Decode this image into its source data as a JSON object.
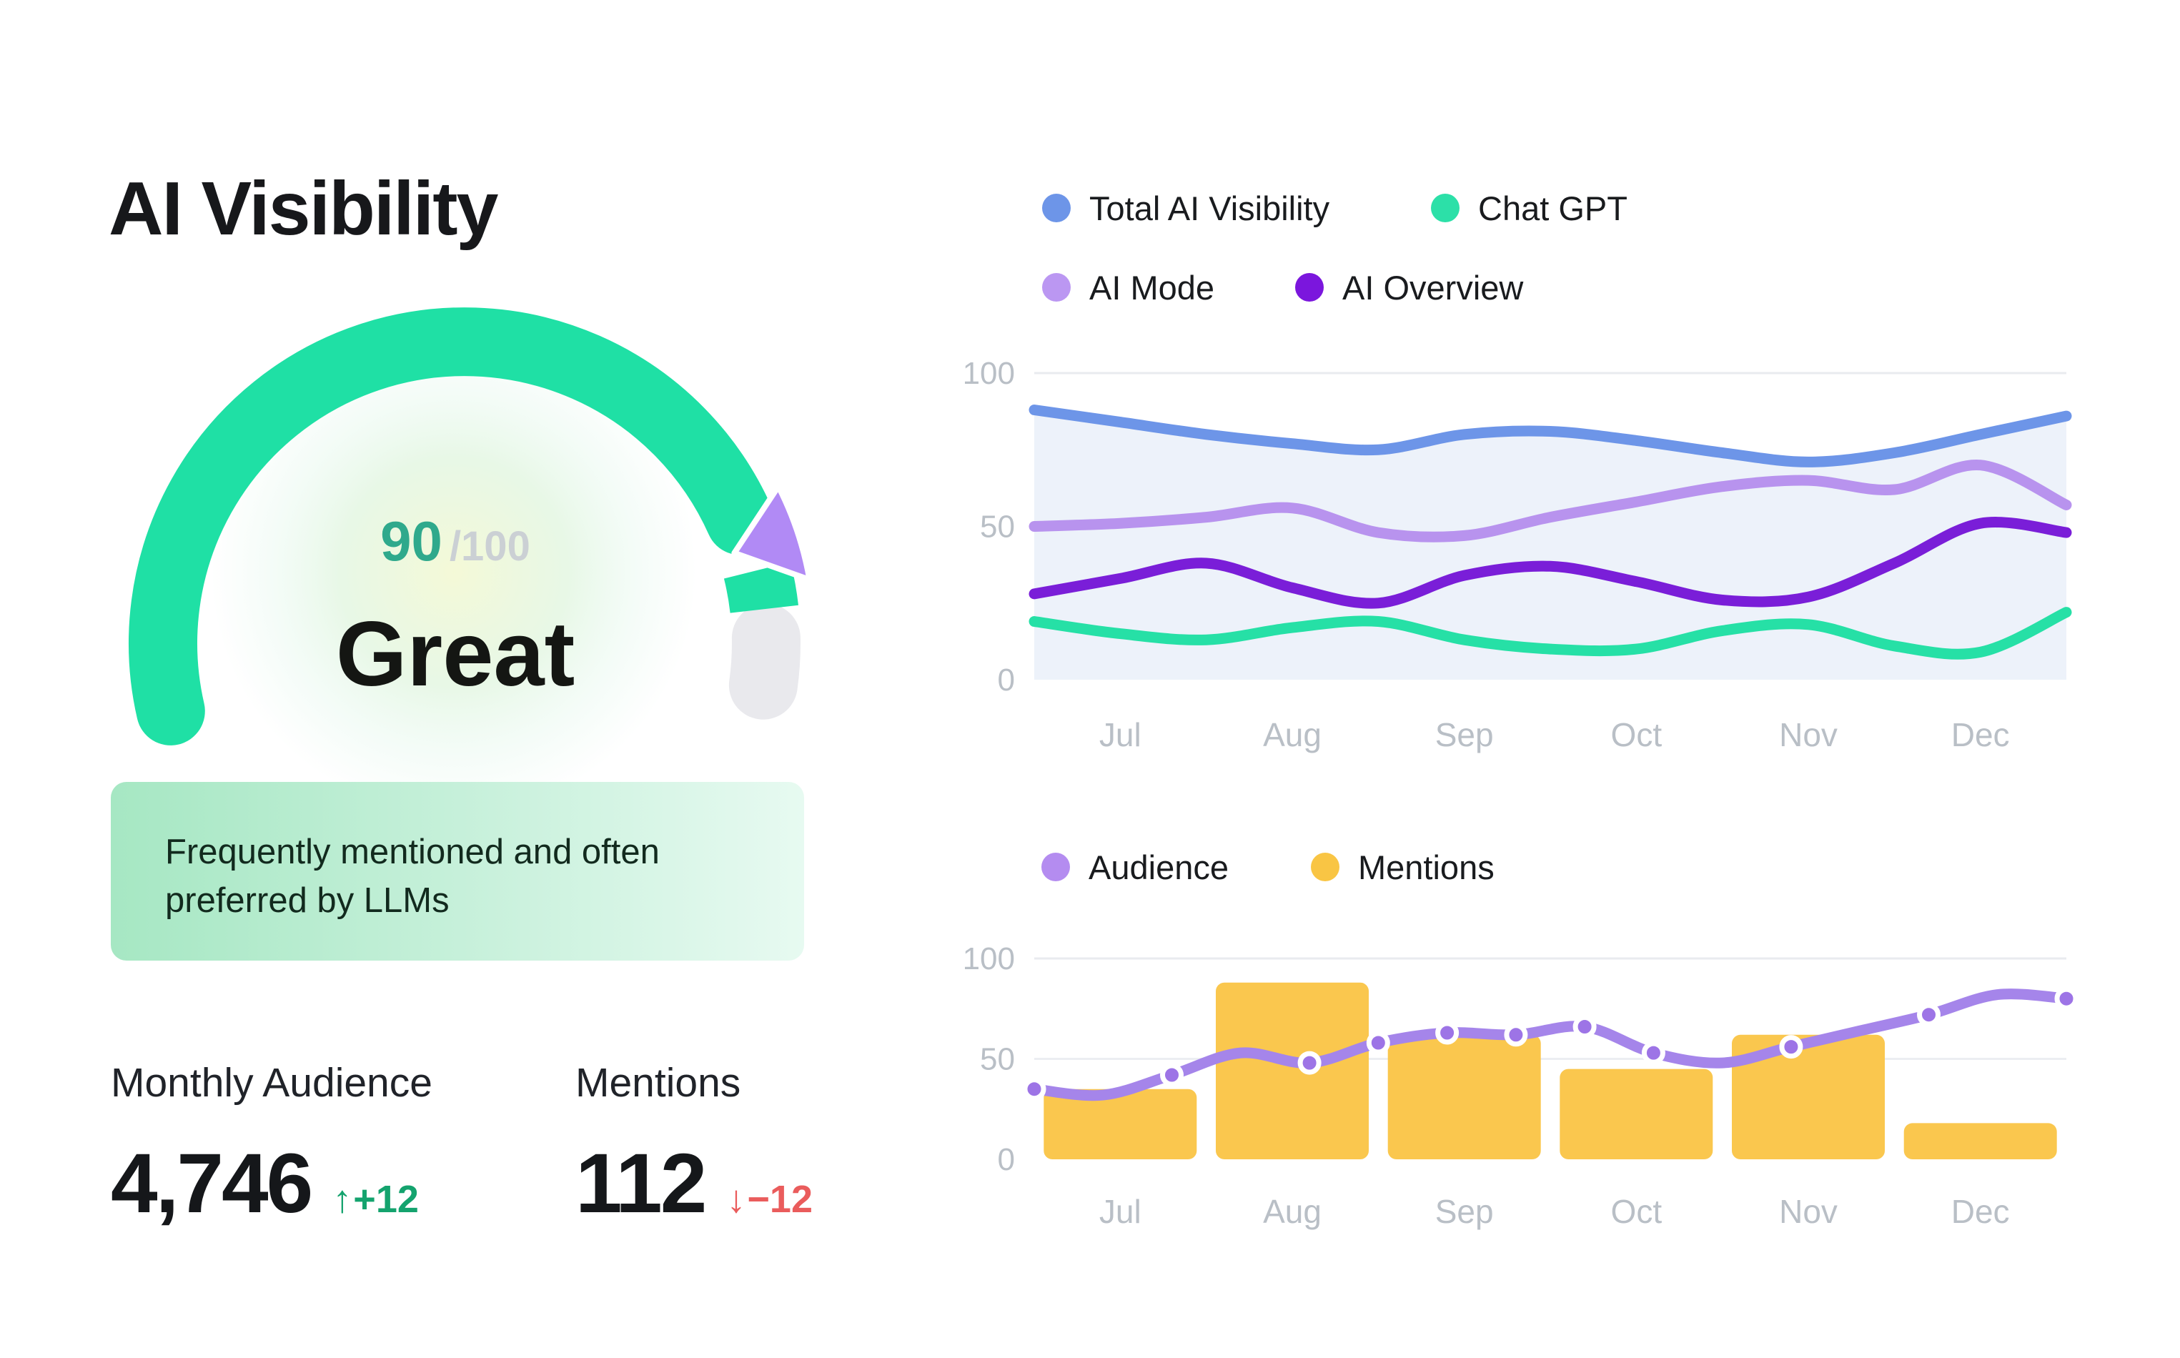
{
  "header": {
    "title": "AI Visibility"
  },
  "gauge": {
    "score": "90",
    "max": "/100",
    "rating": "Great",
    "colors": {
      "arc": "#1fe0a5",
      "wedge": "#b18af5",
      "remainder": "#e9e9ed",
      "score": "#2fa98c",
      "max_text": "#cbd0d4",
      "rating_text": "#141613"
    }
  },
  "note": {
    "line1": "Frequently mentioned and often",
    "line2": "preferred by LLMs"
  },
  "stats": [
    {
      "label": "Monthly Audience",
      "value": "4,746",
      "delta_arrow": "↑",
      "delta_text": "+12",
      "delta_color": "#14a36e"
    },
    {
      "label": "Mentions",
      "value": "112",
      "delta_arrow": "↓",
      "delta_text": "−12",
      "delta_color": "#ea5c5c"
    }
  ],
  "chart_data": [
    {
      "type": "line",
      "x_labels": [
        "Jul",
        "Aug",
        "Sep",
        "Oct",
        "Nov",
        "Dec"
      ],
      "ylim": [
        0,
        100
      ],
      "yticks": [
        0,
        50,
        100
      ],
      "grid": true,
      "legend_position": "top",
      "area_under_first_series": true,
      "area_color": "#edf2fa",
      "tick_color": "#b9bfc6",
      "series": [
        {
          "name": "Total AI Visibility",
          "color": "#6d95e8",
          "values": [
            88,
            84,
            80,
            77,
            75,
            80,
            81,
            78,
            74,
            71,
            74,
            80,
            86
          ]
        },
        {
          "name": "AI Mode",
          "color": "#b893ee",
          "values": [
            50,
            51,
            53,
            56,
            48,
            47,
            53,
            58,
            63,
            65,
            62,
            70,
            57
          ]
        },
        {
          "name": "AI Overview",
          "color": "#7a1ed8",
          "values": [
            28,
            33,
            38,
            30,
            25,
            34,
            37,
            32,
            26,
            27,
            38,
            51,
            48
          ]
        },
        {
          "name": "Chat GPT",
          "color": "#26e0a6",
          "values": [
            19,
            15,
            13,
            17,
            19,
            13,
            10,
            10,
            16,
            18,
            11,
            9,
            22
          ]
        }
      ],
      "legend": [
        {
          "label": "Total AI Visibility",
          "color": "#6d95e8"
        },
        {
          "label": "Chat GPT",
          "color": "#2ce0a8"
        },
        {
          "label": "AI Mode",
          "color": "#bb97f2"
        },
        {
          "label": "AI Overview",
          "color": "#7b16dd"
        }
      ]
    },
    {
      "type": "bar+line",
      "x_labels": [
        "Jul",
        "Aug",
        "Sep",
        "Oct",
        "Nov",
        "Dec"
      ],
      "ylim": [
        0,
        100
      ],
      "yticks": [
        0,
        50,
        100
      ],
      "grid": true,
      "legend_position": "top",
      "tick_color": "#b9bfc6",
      "bars": {
        "name": "Mentions",
        "color": "#fac74e",
        "values": [
          35,
          88,
          62,
          45,
          62,
          18
        ]
      },
      "line": {
        "name": "Audience",
        "color": "#a585ea",
        "marker_fill": "#9d74e6",
        "values": [
          35,
          32,
          42,
          53,
          48,
          58,
          63,
          62,
          66,
          53,
          48,
          56,
          64,
          72,
          82,
          80
        ],
        "marker_indices": [
          0,
          2,
          4,
          5,
          6,
          7,
          8,
          9,
          11,
          13,
          15
        ]
      },
      "legend": [
        {
          "label": "Audience",
          "color": "#b48cf0"
        },
        {
          "label": "Mentions",
          "color": "#f9c544"
        }
      ]
    }
  ]
}
